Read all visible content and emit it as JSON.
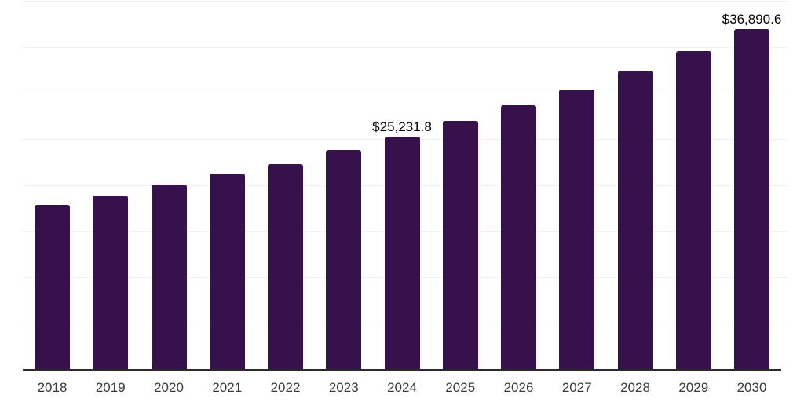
{
  "page": {
    "background_color": "#ffffff"
  },
  "chart_data": {
    "type": "bar",
    "title": "",
    "xlabel": "",
    "ylabel": "",
    "categories": [
      "2018",
      "2019",
      "2020",
      "2021",
      "2022",
      "2023",
      "2024",
      "2025",
      "2026",
      "2027",
      "2028",
      "2029",
      "2030"
    ],
    "values": [
      17820,
      18850,
      20040,
      21240,
      22260,
      23800,
      25231.8,
      26950,
      28660,
      30360,
      32410,
      34570,
      36890.6
    ],
    "value_labels": {
      "2024": "$25,231.8",
      "2030": "$36,890.6"
    },
    "ylim": [
      0,
      40000
    ],
    "gridline_step": 5000,
    "grid": "horizontal-only",
    "legend": "none",
    "y_axis_ticks_visible": false,
    "bar_color": "#36114b",
    "axis_line_color": "#2b2b2b",
    "gridline_color": "#f2f2f2",
    "tick_label_color": "#3a3a3a",
    "value_label_color": "#000000"
  }
}
